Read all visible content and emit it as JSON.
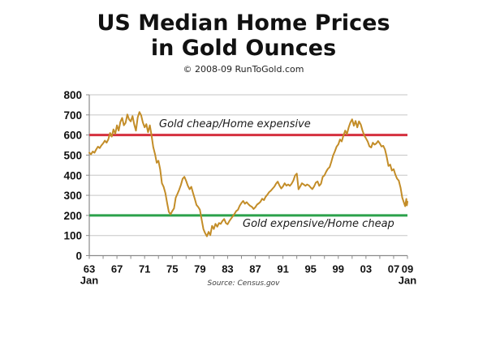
{
  "header": {
    "title_line1": "US Median Home Prices",
    "title_line2": "in Gold Ounces",
    "copyright": "© 2008-09 RunToGold.com"
  },
  "chart_data": {
    "type": "line",
    "title": "US Median Home Prices in Gold Ounces",
    "xlabel": "",
    "ylabel": "",
    "ylim": [
      0,
      800
    ],
    "y_tick_step": 100,
    "x_range": [
      1963,
      2009
    ],
    "x_minor_tick_step_years": 2,
    "x_ticks": [
      {
        "year": 1963,
        "label": "63",
        "sub": "Jan"
      },
      {
        "year": 1967,
        "label": "67"
      },
      {
        "year": 1971,
        "label": "71"
      },
      {
        "year": 1975,
        "label": "75"
      },
      {
        "year": 1979,
        "label": "79"
      },
      {
        "year": 1983,
        "label": "83"
      },
      {
        "year": 1987,
        "label": "87"
      },
      {
        "year": 1991,
        "label": "91"
      },
      {
        "year": 1995,
        "label": "95"
      },
      {
        "year": 1999,
        "label": "99"
      },
      {
        "year": 2003,
        "label": "03"
      },
      {
        "year": 2007,
        "label": "07"
      },
      {
        "year": 2009,
        "label": "09",
        "sub": "Jan"
      }
    ],
    "grid": "horizontal",
    "legend": "none",
    "colors": {
      "grid": "#c6c6c6",
      "axis": "#8a8a8a",
      "tick_text": "#111111"
    },
    "reference_lines": [
      {
        "value": 600,
        "color": "#d5303e",
        "label": "Gold cheap/Home expensive"
      },
      {
        "value": 200,
        "color": "#2ba14b",
        "label": "Gold expensive/Home cheap"
      }
    ],
    "source": "Source: Census.gov",
    "series": [
      {
        "name": "US median home price in gold ounces",
        "color": "#c38d28",
        "points": [
          [
            1963.0,
            512
          ],
          [
            1963.25,
            504
          ],
          [
            1963.5,
            518
          ],
          [
            1963.75,
            512
          ],
          [
            1964.0,
            528
          ],
          [
            1964.25,
            542
          ],
          [
            1964.5,
            535
          ],
          [
            1964.75,
            548
          ],
          [
            1965.0,
            558
          ],
          [
            1965.25,
            572
          ],
          [
            1965.5,
            562
          ],
          [
            1965.75,
            578
          ],
          [
            1966.0,
            610
          ],
          [
            1966.25,
            592
          ],
          [
            1966.5,
            628
          ],
          [
            1966.75,
            606
          ],
          [
            1967.0,
            648
          ],
          [
            1967.25,
            622
          ],
          [
            1967.5,
            665
          ],
          [
            1967.75,
            685
          ],
          [
            1968.0,
            648
          ],
          [
            1968.25,
            660
          ],
          [
            1968.5,
            702
          ],
          [
            1968.75,
            678
          ],
          [
            1969.0,
            668
          ],
          [
            1969.25,
            694
          ],
          [
            1969.5,
            652
          ],
          [
            1969.75,
            622
          ],
          [
            1970.0,
            688
          ],
          [
            1970.25,
            714
          ],
          [
            1970.5,
            698
          ],
          [
            1970.75,
            662
          ],
          [
            1971.0,
            638
          ],
          [
            1971.25,
            654
          ],
          [
            1971.5,
            614
          ],
          [
            1971.75,
            648
          ],
          [
            1972.0,
            598
          ],
          [
            1972.25,
            540
          ],
          [
            1972.5,
            505
          ],
          [
            1972.75,
            462
          ],
          [
            1973.0,
            472
          ],
          [
            1973.25,
            430
          ],
          [
            1973.5,
            360
          ],
          [
            1973.75,
            342
          ],
          [
            1974.0,
            312
          ],
          [
            1974.25,
            262
          ],
          [
            1974.5,
            218
          ],
          [
            1974.75,
            205
          ],
          [
            1975.0,
            222
          ],
          [
            1975.25,
            235
          ],
          [
            1975.5,
            288
          ],
          [
            1975.75,
            308
          ],
          [
            1976.0,
            328
          ],
          [
            1976.25,
            352
          ],
          [
            1976.5,
            382
          ],
          [
            1976.75,
            392
          ],
          [
            1977.0,
            372
          ],
          [
            1977.25,
            348
          ],
          [
            1977.5,
            330
          ],
          [
            1977.75,
            342
          ],
          [
            1978.0,
            312
          ],
          [
            1978.25,
            282
          ],
          [
            1978.5,
            252
          ],
          [
            1978.75,
            242
          ],
          [
            1979.0,
            228
          ],
          [
            1979.25,
            178
          ],
          [
            1979.5,
            132
          ],
          [
            1979.75,
            112
          ],
          [
            1980.0,
            96
          ],
          [
            1980.25,
            118
          ],
          [
            1980.5,
            102
          ],
          [
            1980.75,
            148
          ],
          [
            1981.0,
            132
          ],
          [
            1981.25,
            158
          ],
          [
            1981.5,
            144
          ],
          [
            1981.75,
            162
          ],
          [
            1982.0,
            158
          ],
          [
            1982.25,
            172
          ],
          [
            1982.5,
            182
          ],
          [
            1982.75,
            162
          ],
          [
            1983.0,
            156
          ],
          [
            1983.25,
            172
          ],
          [
            1983.5,
            184
          ],
          [
            1983.75,
            196
          ],
          [
            1984.0,
            208
          ],
          [
            1984.25,
            222
          ],
          [
            1984.5,
            228
          ],
          [
            1984.75,
            248
          ],
          [
            1985.0,
            262
          ],
          [
            1985.25,
            272
          ],
          [
            1985.5,
            258
          ],
          [
            1985.75,
            266
          ],
          [
            1986.0,
            256
          ],
          [
            1986.25,
            248
          ],
          [
            1986.5,
            243
          ],
          [
            1986.75,
            232
          ],
          [
            1987.0,
            240
          ],
          [
            1987.25,
            254
          ],
          [
            1987.5,
            260
          ],
          [
            1987.75,
            268
          ],
          [
            1988.0,
            283
          ],
          [
            1988.25,
            276
          ],
          [
            1988.5,
            293
          ],
          [
            1988.75,
            303
          ],
          [
            1989.0,
            316
          ],
          [
            1989.25,
            323
          ],
          [
            1989.5,
            333
          ],
          [
            1989.75,
            343
          ],
          [
            1990.0,
            358
          ],
          [
            1990.25,
            368
          ],
          [
            1990.5,
            349
          ],
          [
            1990.75,
            334
          ],
          [
            1991.0,
            344
          ],
          [
            1991.25,
            360
          ],
          [
            1991.5,
            348
          ],
          [
            1991.75,
            354
          ],
          [
            1992.0,
            347
          ],
          [
            1992.25,
            358
          ],
          [
            1992.5,
            373
          ],
          [
            1992.75,
            398
          ],
          [
            1993.0,
            408
          ],
          [
            1993.25,
            330
          ],
          [
            1993.5,
            344
          ],
          [
            1993.75,
            360
          ],
          [
            1994.0,
            354
          ],
          [
            1994.25,
            347
          ],
          [
            1994.5,
            354
          ],
          [
            1994.75,
            349
          ],
          [
            1995.0,
            339
          ],
          [
            1995.25,
            331
          ],
          [
            1995.5,
            344
          ],
          [
            1995.75,
            363
          ],
          [
            1996.0,
            369
          ],
          [
            1996.25,
            347
          ],
          [
            1996.5,
            358
          ],
          [
            1996.75,
            392
          ],
          [
            1997.0,
            399
          ],
          [
            1997.25,
            418
          ],
          [
            1997.5,
            432
          ],
          [
            1997.75,
            440
          ],
          [
            1998.0,
            468
          ],
          [
            1998.25,
            498
          ],
          [
            1998.5,
            518
          ],
          [
            1998.75,
            542
          ],
          [
            1999.0,
            553
          ],
          [
            1999.25,
            578
          ],
          [
            1999.5,
            568
          ],
          [
            1999.75,
            598
          ],
          [
            2000.0,
            622
          ],
          [
            2000.25,
            604
          ],
          [
            2000.5,
            638
          ],
          [
            2000.75,
            662
          ],
          [
            2001.0,
            678
          ],
          [
            2001.25,
            646
          ],
          [
            2001.5,
            670
          ],
          [
            2001.75,
            638
          ],
          [
            2002.0,
            668
          ],
          [
            2002.25,
            652
          ],
          [
            2002.5,
            622
          ],
          [
            2002.75,
            598
          ],
          [
            2003.0,
            583
          ],
          [
            2003.25,
            568
          ],
          [
            2003.5,
            544
          ],
          [
            2003.75,
            538
          ],
          [
            2004.0,
            562
          ],
          [
            2004.25,
            552
          ],
          [
            2004.5,
            558
          ],
          [
            2004.75,
            570
          ],
          [
            2005.0,
            558
          ],
          [
            2005.25,
            543
          ],
          [
            2005.5,
            546
          ],
          [
            2005.75,
            528
          ],
          [
            2006.0,
            492
          ],
          [
            2006.25,
            446
          ],
          [
            2006.5,
            453
          ],
          [
            2006.75,
            423
          ],
          [
            2007.0,
            430
          ],
          [
            2007.25,
            403
          ],
          [
            2007.5,
            383
          ],
          [
            2007.75,
            373
          ],
          [
            2008.0,
            338
          ],
          [
            2008.25,
            288
          ],
          [
            2008.5,
            263
          ],
          [
            2008.67,
            246
          ],
          [
            2008.83,
            282
          ],
          [
            2008.92,
            250
          ],
          [
            2009.0,
            268
          ]
        ]
      }
    ]
  }
}
